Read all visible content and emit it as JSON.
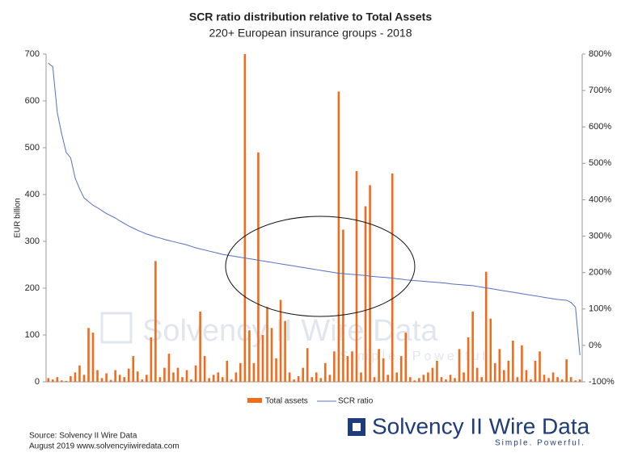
{
  "chart_data": {
    "type": "bar_line",
    "title": "SCR ratio distribution relative to Total Assets",
    "subtitle": "220+ European insurance groups - 2018",
    "y_label": "EUR billion",
    "categories": [
      null,
      null,
      null,
      null,
      null,
      null,
      null,
      null,
      null,
      null,
      null,
      null,
      null,
      null,
      null,
      null,
      null,
      null,
      null,
      null,
      null,
      null,
      null,
      null,
      null,
      null,
      null,
      null,
      null,
      null,
      null,
      null,
      null,
      null,
      null,
      null,
      null,
      null,
      null,
      null,
      null,
      null,
      null,
      null,
      null,
      null,
      null,
      null,
      null,
      null,
      null,
      null,
      null,
      null,
      null,
      null,
      null,
      null,
      null,
      null,
      null,
      null,
      null,
      null,
      null,
      null,
      null,
      null,
      null,
      null,
      null,
      null,
      null,
      null,
      null,
      null,
      null,
      null,
      null,
      null,
      null,
      null,
      null,
      null,
      null,
      null,
      null,
      null,
      null,
      null,
      null,
      null,
      null,
      null,
      null,
      null,
      null,
      null,
      null,
      null,
      null,
      null,
      null,
      null,
      null,
      null,
      null,
      null,
      null,
      null,
      null,
      null,
      null,
      null,
      null,
      null,
      null,
      null,
      null,
      null
    ],
    "series": [
      {
        "name": "Total assets",
        "type": "bar",
        "color": "#f26b1d",
        "values": [
          8,
          5,
          10,
          3,
          2,
          12,
          20,
          35,
          15,
          115,
          105,
          25,
          8,
          18,
          4,
          25,
          15,
          10,
          28,
          55,
          22,
          5,
          15,
          95,
          258,
          10,
          30,
          60,
          20,
          30,
          10,
          25,
          5,
          35,
          150,
          55,
          8,
          15,
          20,
          10,
          45,
          5,
          20,
          40,
          700,
          110,
          40,
          490,
          100,
          160,
          115,
          50,
          175,
          130,
          20,
          5,
          12,
          30,
          72,
          10,
          20,
          8,
          40,
          15,
          65,
          620,
          325,
          55,
          65,
          450,
          20,
          375,
          420,
          10,
          70,
          50,
          15,
          445,
          20,
          55,
          105,
          10,
          3,
          8,
          15,
          20,
          30,
          45,
          10,
          5,
          15,
          8,
          70,
          20,
          95,
          150,
          30,
          10,
          235,
          135,
          40,
          70,
          25,
          45,
          88,
          10,
          78,
          25,
          5,
          45,
          65,
          15,
          8,
          20,
          10,
          5,
          48,
          10,
          3,
          5
        ]
      },
      {
        "name": "SCR ratio",
        "type": "line",
        "axis": "y2",
        "color": "#5470c0",
        "values": [
          775,
          765,
          640,
          580,
          530,
          515,
          460,
          430,
          405,
          395,
          385,
          378,
          370,
          362,
          356,
          350,
          342,
          335,
          328,
          322,
          316,
          311,
          306,
          302,
          298,
          295,
          291,
          288,
          285,
          282,
          279,
          276,
          272,
          268,
          265,
          262,
          259,
          256,
          253,
          250,
          248,
          246,
          244,
          242,
          240,
          238,
          236,
          234,
          232,
          230,
          228,
          226,
          224,
          222,
          220,
          218,
          216,
          214,
          212,
          210,
          208,
          206,
          204,
          202,
          200,
          198,
          197,
          196,
          195,
          194,
          193,
          192,
          190,
          189,
          188,
          187,
          186,
          185,
          183,
          182,
          180,
          179,
          178,
          177,
          176,
          175,
          174,
          173,
          172,
          171,
          169,
          168,
          167,
          166,
          165,
          164,
          162,
          160,
          158,
          156,
          154,
          152,
          150,
          148,
          146,
          144,
          142,
          140,
          138,
          136,
          134,
          132,
          130,
          128,
          126,
          125,
          124,
          118,
          105,
          -27
        ]
      }
    ],
    "ylim": [
      0,
      700
    ],
    "yticks": [
      0,
      100,
      200,
      300,
      400,
      500,
      600,
      700
    ],
    "y2lim": [
      -100,
      800
    ],
    "y2ticks": [
      {
        "value": -100,
        "label": "-100%"
      },
      {
        "value": 0,
        "label": "0%"
      },
      {
        "value": 100,
        "label": "100%"
      },
      {
        "value": 200,
        "label": "200%"
      },
      {
        "value": 300,
        "label": "300%"
      },
      {
        "value": 400,
        "label": "400%"
      },
      {
        "value": 500,
        "label": "500%"
      },
      {
        "value": 600,
        "label": "600%"
      },
      {
        "value": 700,
        "label": "700%"
      },
      {
        "value": 800,
        "label": "800%"
      }
    ],
    "legend": "bottom",
    "source": [
      "Source: Solvency II Wire Data",
      "August 2019   www.solvencyiiwiredata.com"
    ],
    "logo": {
      "name": "Solvency II Wire Data",
      "tagline": "Simple. Powerful."
    }
  }
}
